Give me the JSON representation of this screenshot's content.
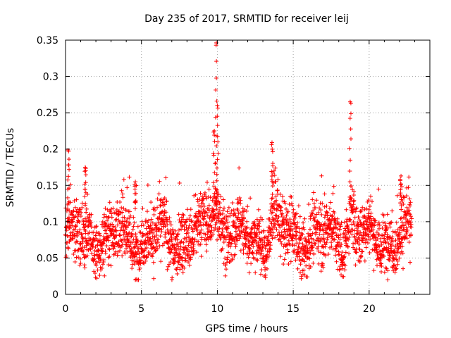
{
  "chart_data": {
    "type": "scatter",
    "title": "Day 235 of 2017, SRMTID for receiver leij",
    "xlabel": "GPS time / hours",
    "ylabel": "SRMTID / TECUs",
    "xlim": [
      0,
      24
    ],
    "ylim": [
      0,
      0.35
    ],
    "xticks": [
      0,
      5,
      10,
      15,
      20
    ],
    "yticks": [
      0,
      0.05,
      0.1,
      0.15,
      0.2,
      0.25,
      0.3,
      0.35
    ],
    "xtick_labels": [
      "0",
      "5",
      "10",
      "15",
      "20"
    ],
    "ytick_labels": [
      "0",
      "0.05",
      "0.1",
      "0.15",
      "0.2",
      "0.25",
      "0.3",
      "0.35"
    ],
    "grid": true,
    "marker": "+",
    "color": "#ff0000",
    "series_name": "SRMTID",
    "x_range_data": [
      0.0,
      22.8
    ],
    "peaks": [
      {
        "x": 0.2,
        "y": 0.197
      },
      {
        "x": 1.3,
        "y": 0.175
      },
      {
        "x": 4.6,
        "y": 0.155
      },
      {
        "x": 9.8,
        "y": 0.225
      },
      {
        "x": 9.92,
        "y": 0.343
      },
      {
        "x": 10.0,
        "y": 0.26
      },
      {
        "x": 13.6,
        "y": 0.209
      },
      {
        "x": 18.75,
        "y": 0.265
      },
      {
        "x": 22.1,
        "y": 0.163
      }
    ]
  }
}
